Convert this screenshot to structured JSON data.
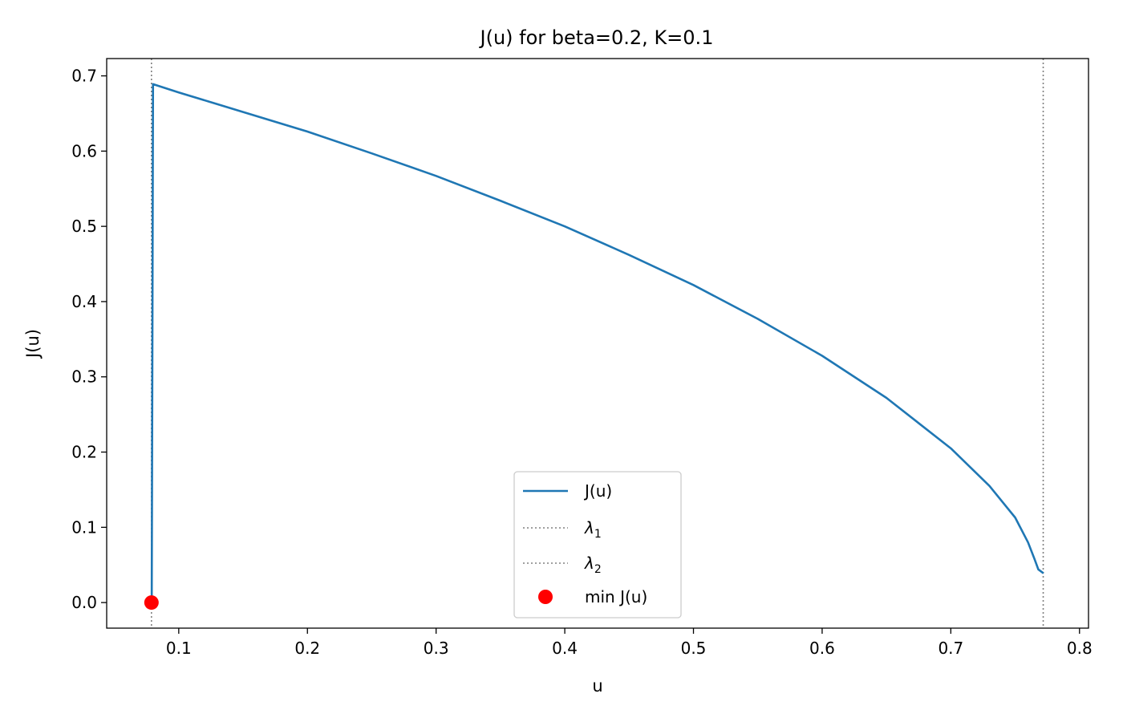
{
  "chart_data": {
    "type": "line",
    "title": "J(u) for beta=0.2, K=0.1",
    "xlabel": "u",
    "ylabel": "J(u)",
    "xlim": [
      0.044,
      0.807
    ],
    "ylim": [
      -0.034,
      0.723
    ],
    "xticks": [
      0.1,
      0.2,
      0.3,
      0.4,
      0.5,
      0.6,
      0.7,
      0.8
    ],
    "xtick_labels": [
      "0.1",
      "0.2",
      "0.3",
      "0.4",
      "0.5",
      "0.6",
      "0.7",
      "0.8"
    ],
    "yticks": [
      0.0,
      0.1,
      0.2,
      0.3,
      0.4,
      0.5,
      0.6,
      0.7
    ],
    "ytick_labels": [
      "0.0",
      "0.1",
      "0.2",
      "0.3",
      "0.4",
      "0.5",
      "0.6",
      "0.7"
    ],
    "grid": false,
    "legend_placement": "lower-center",
    "series": [
      {
        "name": "J(u)",
        "color": "#1f77b4",
        "style": "solid",
        "x": [
          0.079,
          0.0795,
          0.08,
          0.1,
          0.15,
          0.2,
          0.25,
          0.3,
          0.35,
          0.4,
          0.45,
          0.5,
          0.55,
          0.6,
          0.65,
          0.7,
          0.73,
          0.75,
          0.76,
          0.765,
          0.768,
          0.772
        ],
        "y": [
          0.0,
          0.34,
          0.689,
          0.678,
          0.652,
          0.626,
          0.597,
          0.567,
          0.534,
          0.5,
          0.462,
          0.422,
          0.377,
          0.328,
          0.272,
          0.205,
          0.155,
          0.113,
          0.08,
          0.058,
          0.044,
          0.039
        ]
      }
    ],
    "vlines": [
      {
        "name": "λ1",
        "x": 0.0788,
        "color": "#808080",
        "style": "dotted"
      },
      {
        "name": "λ2",
        "x": 0.7718,
        "color": "#808080",
        "style": "dotted"
      }
    ],
    "points": [
      {
        "name": "min J(u)",
        "x": 0.0788,
        "y": 0.0,
        "color": "#ff0000"
      }
    ],
    "legend": [
      {
        "label": "J(u)",
        "kind": "line",
        "color": "#1f77b4",
        "style": "solid"
      },
      {
        "label": "λ",
        "sub": "1",
        "kind": "line",
        "color": "#808080",
        "style": "dotted"
      },
      {
        "label": "λ",
        "sub": "2",
        "kind": "line",
        "color": "#808080",
        "style": "dotted"
      },
      {
        "label": "min J(u)",
        "kind": "marker",
        "color": "#ff0000"
      }
    ]
  }
}
